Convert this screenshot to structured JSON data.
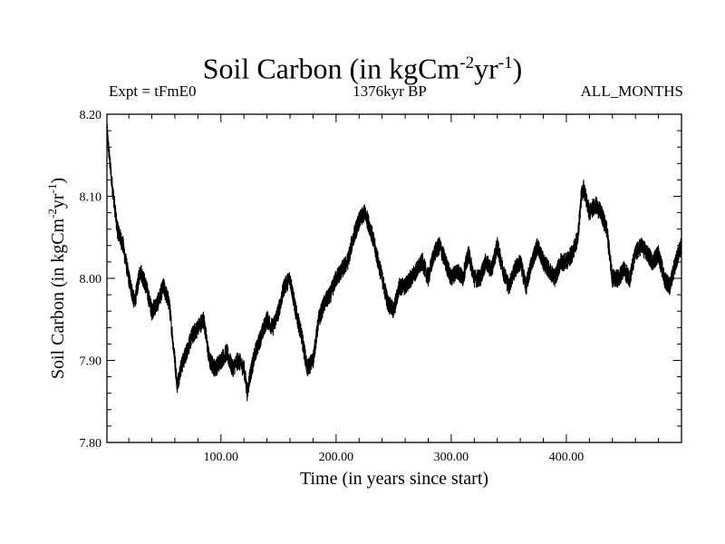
{
  "title": {
    "main": "Soil Carbon (in kgCm",
    "sup1": "-2",
    "mid": "yr",
    "sup2": "-1",
    "end": ")"
  },
  "subtitles": {
    "left": "Expt = tFmE0",
    "center": "1376kyr BP",
    "right": "ALL_MONTHS"
  },
  "chart_data": {
    "type": "line",
    "xlabel": "Time (in years since start)",
    "ylabel": {
      "main": "Soil Carbon (in kgCm",
      "sup1": "-2",
      "mid": "yr",
      "sup2": "-1",
      "end": ")"
    },
    "xlim": [
      1,
      500
    ],
    "ylim": [
      7.8,
      8.2
    ],
    "x_ticks": [
      100,
      200,
      300,
      400
    ],
    "x_tick_labels": [
      "100.00",
      "200.00",
      "300.00",
      "400.00"
    ],
    "y_ticks": [
      7.8,
      7.9,
      8.0,
      8.1,
      8.2
    ],
    "y_tick_labels": [
      "7.80",
      "7.90",
      "8.00",
      "8.10",
      "8.20"
    ],
    "grid": false,
    "line_color": "#000000",
    "series": [
      {
        "x": [
          1,
          5,
          10,
          15,
          20,
          25,
          30,
          35,
          40,
          45,
          50,
          55,
          60,
          62,
          65,
          70,
          75,
          80,
          85,
          90,
          95,
          100,
          105,
          110,
          115,
          120,
          123,
          125,
          130,
          135,
          140,
          145,
          150,
          155,
          160,
          165,
          170,
          175,
          180,
          185,
          190,
          195,
          200,
          205,
          210,
          215,
          220,
          225,
          230,
          235,
          240,
          245,
          250,
          255,
          260,
          265,
          270,
          275,
          280,
          285,
          290,
          295,
          300,
          305,
          310,
          315,
          320,
          325,
          330,
          335,
          340,
          345,
          350,
          355,
          360,
          365,
          370,
          375,
          380,
          385,
          390,
          395,
          400,
          405,
          410,
          413,
          415,
          420,
          425,
          430,
          435,
          440,
          445,
          450,
          455,
          460,
          465,
          470,
          475,
          480,
          485,
          490,
          495,
          500
        ],
        "y": [
          8.18,
          8.12,
          8.06,
          8.04,
          8.0,
          7.97,
          8.01,
          7.99,
          7.96,
          7.97,
          7.99,
          7.97,
          7.9,
          7.87,
          7.89,
          7.91,
          7.93,
          7.94,
          7.95,
          7.9,
          7.89,
          7.9,
          7.91,
          7.89,
          7.9,
          7.89,
          7.86,
          7.88,
          7.91,
          7.93,
          7.95,
          7.94,
          7.96,
          7.99,
          8.0,
          7.96,
          7.93,
          7.89,
          7.9,
          7.95,
          7.97,
          7.98,
          8.0,
          8.01,
          8.02,
          8.05,
          8.07,
          8.08,
          8.06,
          8.03,
          8.0,
          7.97,
          7.96,
          7.99,
          7.99,
          8.0,
          8.01,
          8.02,
          8.0,
          8.03,
          8.04,
          8.02,
          8.0,
          8.01,
          8.0,
          8.03,
          8.0,
          8.0,
          8.02,
          8.01,
          8.04,
          8.01,
          7.99,
          8.01,
          8.02,
          7.99,
          8.02,
          8.04,
          8.02,
          8.01,
          8.0,
          8.02,
          8.02,
          8.03,
          8.05,
          8.1,
          8.11,
          8.08,
          8.09,
          8.08,
          8.06,
          8.0,
          8.0,
          8.01,
          8.0,
          8.03,
          8.04,
          8.03,
          8.02,
          8.03,
          8.0,
          7.99,
          8.02,
          8.04
        ]
      }
    ]
  }
}
